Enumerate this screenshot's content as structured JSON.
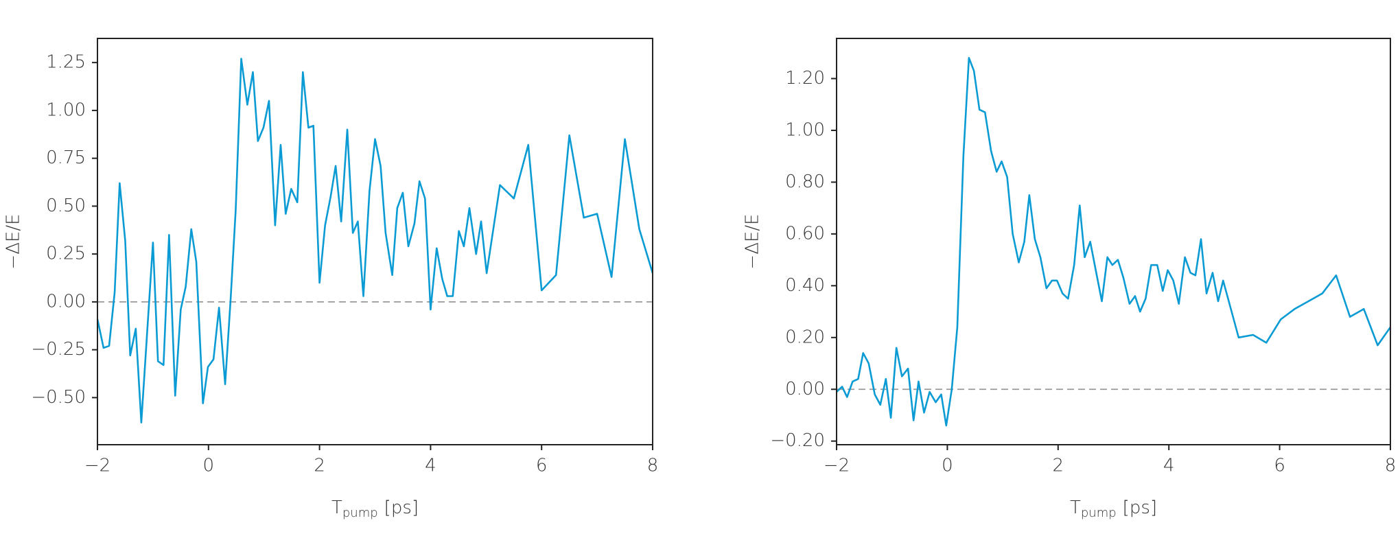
{
  "chart_data": [
    {
      "type": "line",
      "color": "#0a9bd4",
      "ylabel": "−ΔE/E",
      "xlabel": {
        "text": "T",
        "subscript": "pump",
        "suffix": "[ps]"
      },
      "xlim": [
        -2,
        8
      ],
      "xticks": [
        {
          "value": -2,
          "label": "−2"
        },
        0,
        2,
        4,
        6,
        8
      ],
      "ylim": [
        -0.746,
        1.376
      ],
      "yticks": [
        {
          "value": -0.5,
          "label": "−0.50"
        },
        {
          "value": -0.25,
          "label": "−0.25"
        },
        {
          "value": 0,
          "label": "0.00"
        },
        {
          "value": 0.25,
          "label": "0.25"
        },
        {
          "value": 0.5,
          "label": "0.50"
        },
        {
          "value": 0.75,
          "label": "0.75"
        },
        {
          "value": 1,
          "label": "1.00"
        },
        {
          "value": 1.25,
          "label": "1.25"
        }
      ],
      "reference_line": 0,
      "x": [
        -2,
        -1.89,
        -1.79,
        -1.69,
        -1.6,
        -1.5,
        -1.41,
        -1.31,
        -1.21,
        -1.0,
        -0.91,
        -0.81,
        -0.71,
        -0.6,
        -0.5,
        -0.41,
        -0.31,
        -0.22,
        -0.1,
        -0.01,
        0.09,
        0.19,
        0.3,
        0.4,
        0.49,
        0.59,
        0.7,
        0.8,
        0.89,
        0.99,
        1.09,
        1.2,
        1.3,
        1.39,
        1.49,
        1.6,
        1.7,
        1.8,
        1.89,
        2.0,
        2.1,
        2.2,
        2.29,
        2.39,
        2.5,
        2.6,
        2.69,
        2.79,
        2.9,
        3.0,
        3.1,
        3.19,
        3.31,
        3.4,
        3.5,
        3.6,
        3.71,
        3.8,
        3.9,
        4.0,
        4.11,
        4.21,
        4.3,
        4.4,
        4.51,
        4.6,
        4.7,
        4.82,
        4.91,
        5.01,
        5.25,
        5.5,
        5.76,
        6.0,
        6.26,
        6.5,
        6.76,
        7.0,
        7.26,
        7.5,
        7.76,
        8.0
      ],
      "values": [
        -0.09,
        -0.24,
        -0.23,
        0.05,
        0.62,
        0.32,
        -0.28,
        -0.14,
        -0.63,
        0.31,
        -0.31,
        -0.33,
        0.35,
        -0.49,
        -0.04,
        0.08,
        0.38,
        0.21,
        -0.53,
        -0.34,
        -0.3,
        -0.03,
        -0.43,
        0.02,
        0.48,
        1.27,
        1.03,
        1.2,
        0.84,
        0.91,
        1.05,
        0.4,
        0.82,
        0.46,
        0.59,
        0.52,
        1.2,
        0.91,
        0.92,
        0.1,
        0.4,
        0.55,
        0.71,
        0.42,
        0.9,
        0.36,
        0.42,
        0.03,
        0.58,
        0.85,
        0.71,
        0.36,
        0.14,
        0.49,
        0.57,
        0.29,
        0.41,
        0.63,
        0.54,
        -0.04,
        0.28,
        0.12,
        0.03,
        0.03,
        0.37,
        0.29,
        0.49,
        0.25,
        0.42,
        0.15,
        0.61,
        0.54,
        0.82,
        0.06,
        0.14,
        0.87,
        0.44,
        0.46,
        0.13,
        0.85,
        0.38,
        0.15
      ]
    },
    {
      "type": "line",
      "color": "#0a9bd4",
      "ylabel": "−ΔE/E",
      "xlabel": {
        "text": "T",
        "subscript": "pump",
        "suffix": "[ps]"
      },
      "xlim": [
        -2,
        8
      ],
      "xticks": [
        {
          "value": -2,
          "label": "−2"
        },
        0,
        2,
        4,
        6,
        8
      ],
      "ylim": [
        -0.214,
        1.355
      ],
      "yticks": [
        {
          "value": -0.2,
          "label": "−0.20"
        },
        {
          "value": 0,
          "label": "0.00"
        },
        {
          "value": 0.2,
          "label": "0.20"
        },
        {
          "value": 0.4,
          "label": "0.40"
        },
        {
          "value": 0.6,
          "label": "0.60"
        },
        {
          "value": 0.8,
          "label": "0.80"
        },
        {
          "value": 1,
          "label": "1.00"
        },
        {
          "value": 1.2,
          "label": "1.20"
        }
      ],
      "reference_line": 0,
      "x": [
        -2,
        -1.9,
        -1.81,
        -1.71,
        -1.61,
        -1.52,
        -1.42,
        -1.31,
        -1.21,
        -1.11,
        -1.02,
        -0.92,
        -0.82,
        -0.71,
        -0.61,
        -0.52,
        -0.42,
        -0.32,
        -0.21,
        -0.11,
        -0.02,
        0.08,
        0.18,
        0.29,
        0.39,
        0.48,
        0.58,
        0.68,
        0.79,
        0.89,
        0.98,
        1.08,
        1.18,
        1.29,
        1.39,
        1.48,
        1.58,
        1.68,
        1.79,
        1.89,
        1.98,
        2.08,
        2.18,
        2.29,
        2.39,
        2.48,
        2.58,
        2.68,
        2.79,
        2.89,
        2.98,
        3.08,
        3.18,
        3.29,
        3.39,
        3.48,
        3.58,
        3.68,
        3.79,
        3.89,
        3.98,
        4.08,
        4.18,
        4.29,
        4.39,
        4.48,
        4.58,
        4.68,
        4.79,
        4.89,
        4.98,
        5.26,
        5.52,
        5.76,
        6.02,
        6.27,
        6.52,
        6.77,
        7.02,
        7.27,
        7.52,
        7.77,
        8.0
      ],
      "values": [
        -0.01,
        0.01,
        -0.03,
        0.03,
        0.04,
        0.14,
        0.1,
        -0.02,
        -0.06,
        0.04,
        -0.11,
        0.16,
        0.05,
        0.08,
        -0.12,
        0.03,
        -0.09,
        -0.01,
        -0.05,
        -0.02,
        -0.14,
        0.0,
        0.24,
        0.9,
        1.28,
        1.23,
        1.08,
        1.07,
        0.92,
        0.84,
        0.88,
        0.82,
        0.6,
        0.49,
        0.57,
        0.75,
        0.58,
        0.51,
        0.39,
        0.42,
        0.42,
        0.37,
        0.35,
        0.48,
        0.71,
        0.51,
        0.57,
        0.46,
        0.34,
        0.51,
        0.48,
        0.5,
        0.43,
        0.33,
        0.36,
        0.3,
        0.35,
        0.48,
        0.48,
        0.38,
        0.46,
        0.42,
        0.33,
        0.51,
        0.45,
        0.44,
        0.58,
        0.37,
        0.45,
        0.34,
        0.42,
        0.2,
        0.21,
        0.18,
        0.27,
        0.31,
        0.34,
        0.37,
        0.44,
        0.28,
        0.31,
        0.17,
        0.24
      ]
    }
  ]
}
